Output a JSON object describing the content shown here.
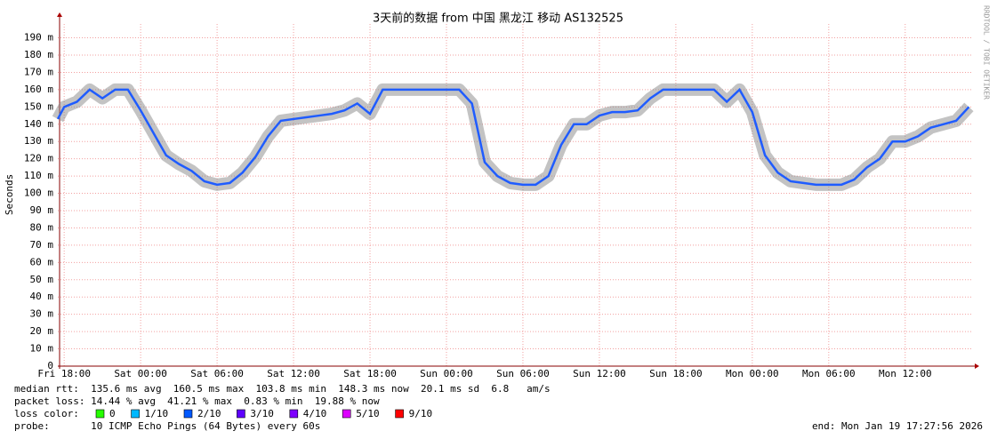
{
  "chart_data": {
    "type": "line",
    "title": "3天前的数据 from 中国 黑龙江 移动 AS132525",
    "y_label": "Seconds",
    "watermark": "RRDTOOL / TOBI OETIKER",
    "color": "#1f5cff",
    "grid": true,
    "xlim": [
      -0.5,
      71.25
    ],
    "ylim": [
      0,
      0.198
    ],
    "xticks": [
      {
        "value": 0,
        "label": "Fri 18:00"
      },
      {
        "value": 6,
        "label": "Sat 00:00"
      },
      {
        "value": 12,
        "label": "Sat 06:00"
      },
      {
        "value": 18,
        "label": "Sat 12:00"
      },
      {
        "value": 24,
        "label": "Sat 18:00"
      },
      {
        "value": 30,
        "label": "Sun 00:00"
      },
      {
        "value": 36,
        "label": "Sun 06:00"
      },
      {
        "value": 42,
        "label": "Sun 12:00"
      },
      {
        "value": 48,
        "label": "Sun 18:00"
      },
      {
        "value": 54,
        "label": "Mon 00:00"
      },
      {
        "value": 60,
        "label": "Mon 06:00"
      },
      {
        "value": 66,
        "label": "Mon 12:00"
      }
    ],
    "yticks": [
      0,
      {
        "value": 0.01,
        "label": "10 m"
      },
      {
        "value": 0.02,
        "label": "20 m"
      },
      {
        "value": 0.03,
        "label": "30 m"
      },
      {
        "value": 0.04,
        "label": "40 m"
      },
      {
        "value": 0.05,
        "label": "50 m"
      },
      {
        "value": 0.06,
        "label": "60 m"
      },
      {
        "value": 0.07,
        "label": "70 m"
      },
      {
        "value": 0.08,
        "label": "80 m"
      },
      {
        "value": 0.09,
        "label": "90 m"
      },
      {
        "value": 0.1,
        "label": "100 m"
      },
      {
        "value": 0.11,
        "label": "110 m"
      },
      {
        "value": 0.12,
        "label": "120 m"
      },
      {
        "value": 0.13,
        "label": "130 m"
      },
      {
        "value": 0.14,
        "label": "140 m"
      },
      {
        "value": 0.15,
        "label": "150 m"
      },
      {
        "value": 0.16,
        "label": "160 m"
      },
      {
        "value": 0.17,
        "label": "170 m"
      },
      {
        "value": 0.18,
        "label": "180 m"
      },
      {
        "value": 0.19,
        "label": "190 m"
      }
    ],
    "x": [
      -0.5,
      0,
      1,
      2,
      3,
      4,
      5,
      6,
      7,
      8,
      9,
      10,
      11,
      12,
      13,
      14,
      15,
      16,
      17,
      18,
      19,
      20,
      21,
      22,
      23,
      24,
      25,
      26,
      27,
      28,
      29,
      30,
      31,
      32,
      33,
      34,
      35,
      36,
      37,
      38,
      39,
      40,
      41,
      42,
      43,
      44,
      45,
      46,
      47,
      48,
      49,
      50,
      51,
      52,
      53,
      54,
      55,
      56,
      57,
      58,
      59,
      60,
      61,
      62,
      63,
      64,
      65,
      66,
      67,
      68,
      69,
      70,
      71
    ],
    "values": [
      0.143,
      0.15,
      0.153,
      0.16,
      0.155,
      0.16,
      0.16,
      0.148,
      0.135,
      0.122,
      0.117,
      0.113,
      0.107,
      0.105,
      0.106,
      0.112,
      0.121,
      0.133,
      0.142,
      0.143,
      0.144,
      0.145,
      0.146,
      0.148,
      0.152,
      0.146,
      0.16,
      0.16,
      0.16,
      0.16,
      0.16,
      0.16,
      0.16,
      0.152,
      0.118,
      0.11,
      0.106,
      0.105,
      0.105,
      0.11,
      0.128,
      0.14,
      0.14,
      0.145,
      0.147,
      0.147,
      0.148,
      0.155,
      0.16,
      0.16,
      0.16,
      0.16,
      0.16,
      0.153,
      0.16,
      0.147,
      0.122,
      0.112,
      0.107,
      0.106,
      0.105,
      0.105,
      0.105,
      0.108,
      0.115,
      0.12,
      0.13,
      0.13,
      0.133,
      0.138,
      0.14,
      0.142,
      0.15
    ]
  },
  "legend": {
    "median": "median rtt:  135.6 ms avg  160.5 ms max  103.8 ms min  148.3 ms now  20.1 ms sd  6.8   am/s",
    "loss": "packet loss: 14.44 % avg  41.21 % max  0.83 % min  19.88 % now",
    "loss_color_label": "loss color:",
    "loss_colors": [
      {
        "label": "0",
        "color": "#26ff00"
      },
      {
        "label": "1/10",
        "color": "#00b8ff"
      },
      {
        "label": "2/10",
        "color": "#0059ff"
      },
      {
        "label": "3/10",
        "color": "#5e00ff"
      },
      {
        "label": "4/10",
        "color": "#7e00ff"
      },
      {
        "label": "5/10",
        "color": "#dd00ff"
      },
      {
        "label": "9/10",
        "color": "#ff0000"
      }
    ],
    "probe": "probe:       10 ICMP Echo Pings (64 Bytes) every 60s",
    "end": "end: Mon Jan 19 17:27:56 2026"
  }
}
